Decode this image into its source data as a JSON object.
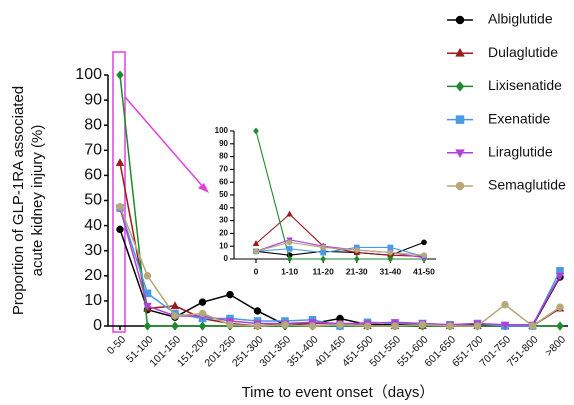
{
  "chart_data": [
    {
      "type": "line",
      "y_label": "Proportion of GLP-1RA associated\nacute kidney injury (%)",
      "x_label": "Time to event onset（days）",
      "categories": [
        "0-50",
        "51-100",
        "101-150",
        "151-200",
        "201-250",
        "251-300",
        "301-350",
        "351-400",
        "401-450",
        "451-500",
        "501-550",
        "551-600",
        "601-650",
        "651-700",
        "701-750",
        "751-800",
        ">800"
      ],
      "ylim": [
        0,
        100
      ],
      "yticks": [
        0,
        10,
        20,
        30,
        40,
        50,
        60,
        70,
        80,
        90,
        100
      ],
      "series": [
        {
          "name": "Albiglutide",
          "color": "#000000",
          "marker": "circle",
          "values": [
            38.5,
            6.5,
            3.5,
            9.5,
            12.5,
            6,
            0.5,
            1,
            3,
            0.5,
            0.5,
            0.5,
            0,
            0.5,
            0,
            0,
            19.5
          ]
        },
        {
          "name": "Dulaglutide",
          "color": "#9b1b1b",
          "marker": "triangle",
          "values": [
            65,
            7,
            8,
            3,
            1,
            0,
            1,
            1,
            1,
            0,
            0,
            0,
            0,
            0,
            0,
            0,
            7
          ]
        },
        {
          "name": "Lixisenatide",
          "color": "#1f8a2b",
          "marker": "diamond",
          "values": [
            100,
            0,
            0,
            0,
            0,
            0,
            0,
            0,
            0,
            0,
            0,
            0,
            0,
            0,
            0,
            0,
            0
          ]
        },
        {
          "name": "Exenatide",
          "color": "#4a9ae8",
          "marker": "square",
          "values": [
            47,
            13,
            5,
            3,
            3,
            2,
            2,
            2.5,
            0,
            1.5,
            1,
            1,
            0.5,
            1,
            0,
            0,
            22
          ]
        },
        {
          "name": "Liraglutide",
          "color": "#b040d8",
          "marker": "triangle-down",
          "values": [
            47,
            8,
            4,
            4,
            2,
            1,
            1,
            1.5,
            1,
            1,
            1.5,
            1,
            0.5,
            1,
            0.5,
            0.5,
            20
          ]
        },
        {
          "name": "Semaglutide",
          "color": "#b5a97a",
          "marker": "circle",
          "values": [
            47.5,
            20,
            4,
            5,
            0.5,
            0,
            0.5,
            0,
            0.5,
            0,
            0,
            0.5,
            0,
            0,
            8.5,
            0,
            7.5
          ]
        }
      ]
    },
    {
      "type": "line",
      "categories": [
        "0",
        "1-10",
        "11-20",
        "21-30",
        "31-40",
        "41-50"
      ],
      "ylim": [
        0,
        100
      ],
      "yticks": [
        0,
        10,
        20,
        30,
        40,
        50,
        60,
        70,
        80,
        90,
        100
      ],
      "series": [
        {
          "color": "#000000",
          "marker": "circle",
          "values": [
            6,
            3,
            6,
            5,
            3,
            13
          ]
        },
        {
          "color": "#9b1b1b",
          "marker": "triangle",
          "values": [
            12,
            35,
            10,
            5,
            3,
            2
          ]
        },
        {
          "color": "#1f8a2b",
          "marker": "diamond",
          "values": [
            100,
            0,
            0,
            0,
            0,
            0
          ]
        },
        {
          "color": "#4a9ae8",
          "marker": "square",
          "values": [
            6,
            8,
            5,
            9,
            9,
            2
          ]
        },
        {
          "color": "#b040d8",
          "marker": "triangle-down",
          "values": [
            6,
            15,
            10,
            7,
            5,
            1
          ]
        },
        {
          "color": "#b5a97a",
          "marker": "circle",
          "values": [
            6,
            13,
            9,
            7,
            5,
            3
          ]
        }
      ]
    }
  ]
}
